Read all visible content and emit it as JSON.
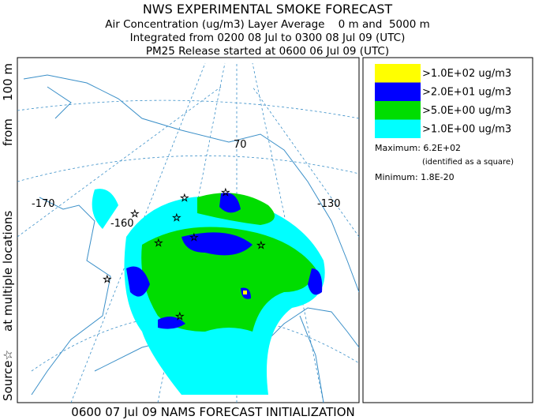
{
  "header": {
    "title": "NWS EXPERIMENTAL SMOKE FORECAST",
    "lines": [
      "Air Concentration (ug/m3) Layer Average    0 m and  5000 m",
      "Integrated from 0200 08 Jul to 0300 08 Jul 09 (UTC)",
      "PM25 Release started at 0600 06 Jul 09 (UTC)"
    ]
  },
  "side_label": [
    "Source☆",
    "at multiple locations",
    "from",
    "100 m"
  ],
  "map": {
    "labels": [
      "-170",
      "-160",
      "70",
      "-130"
    ]
  },
  "legend": {
    "items": [
      {
        "label": ">1.0E+02 ug/m3",
        "color": "#ffff00"
      },
      {
        "label": ">2.0E+01 ug/m3",
        "color": "#0000ff"
      },
      {
        "label": ">5.0E+00 ug/m3",
        "color": "#00dd00"
      },
      {
        "label": ">1.0E+00 ug/m3",
        "color": "#00ffff"
      }
    ],
    "maximum": "Maximum: 6.2E+02",
    "maximum_note": "(identified as a square)",
    "minimum": "Minimum: 1.8E-20"
  },
  "footer": "0600 07 Jul 09 NAMS FORECAST INITIALIZATION"
}
